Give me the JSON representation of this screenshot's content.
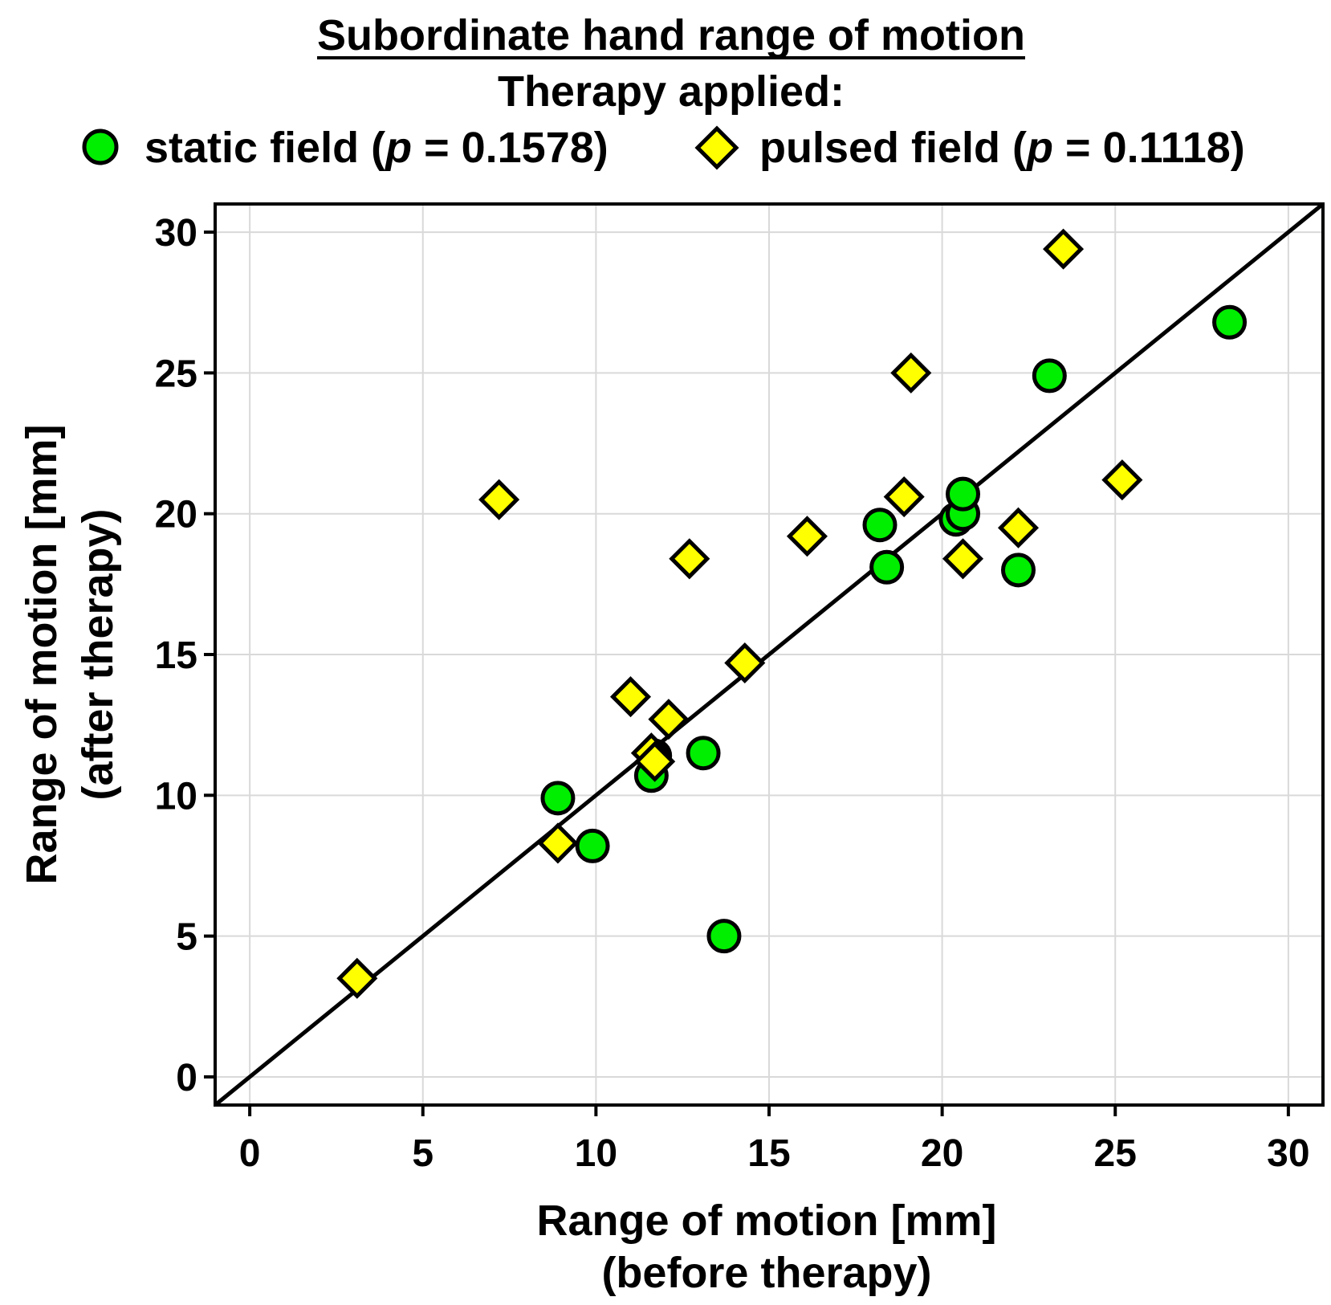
{
  "chart_data": {
    "type": "scatter",
    "title": "Subordinate hand range of motion",
    "subtitle": "Therapy applied:",
    "legend": {
      "placement": "top",
      "entries": [
        {
          "name": "static field",
          "p_prefix": " (",
          "p_symbol": "p",
          "p_suffix": " = 0.1578)",
          "marker": "circle",
          "color": "#00ee00"
        },
        {
          "name": "pulsed field",
          "p_prefix": " (",
          "p_symbol": "p",
          "p_suffix": " = 0.1118)",
          "marker": "diamond",
          "color": "#ffff00"
        }
      ]
    },
    "xlabel_line1": "Range of motion [mm]",
    "xlabel_line2": "(before therapy)",
    "ylabel_line1": "Range of motion [mm]",
    "ylabel_line2": "(after therapy)",
    "xlim": [
      -1,
      31
    ],
    "ylim": [
      -1,
      31
    ],
    "xticks": [
      "0",
      "5",
      "10",
      "15",
      "20",
      "25",
      "30"
    ],
    "yticks": [
      "0",
      "5",
      "10",
      "15",
      "20",
      "25",
      "30"
    ],
    "grid": true,
    "reference_line": {
      "label": "identity y = x",
      "from": [
        -1,
        -1
      ],
      "to": [
        31,
        31
      ]
    },
    "series": [
      {
        "name": "static field",
        "marker": "circle",
        "color": "#00ee00",
        "points": [
          [
            8.9,
            9.9
          ],
          [
            9.9,
            8.2
          ],
          [
            11.6,
            10.7
          ],
          [
            11.7,
            11.4
          ],
          [
            13.1,
            11.5
          ],
          [
            13.7,
            5.0
          ],
          [
            18.2,
            19.6
          ],
          [
            18.4,
            18.1
          ],
          [
            20.4,
            19.8
          ],
          [
            20.6,
            20.0
          ],
          [
            20.6,
            20.7
          ],
          [
            22.2,
            18.0
          ],
          [
            23.1,
            24.9
          ],
          [
            28.3,
            26.8
          ]
        ]
      },
      {
        "name": "pulsed field",
        "marker": "diamond",
        "color": "#ffff00",
        "points": [
          [
            3.1,
            3.5
          ],
          [
            7.2,
            20.5
          ],
          [
            8.9,
            8.3
          ],
          [
            11.0,
            13.5
          ],
          [
            11.6,
            11.5
          ],
          [
            11.7,
            11.2
          ],
          [
            12.1,
            12.7
          ],
          [
            12.7,
            18.4
          ],
          [
            14.3,
            14.7
          ],
          [
            16.1,
            19.2
          ],
          [
            18.9,
            20.6
          ],
          [
            19.1,
            25.0
          ],
          [
            20.6,
            18.4
          ],
          [
            22.2,
            19.5
          ],
          [
            23.5,
            29.4
          ],
          [
            25.2,
            21.2
          ]
        ]
      }
    ]
  }
}
